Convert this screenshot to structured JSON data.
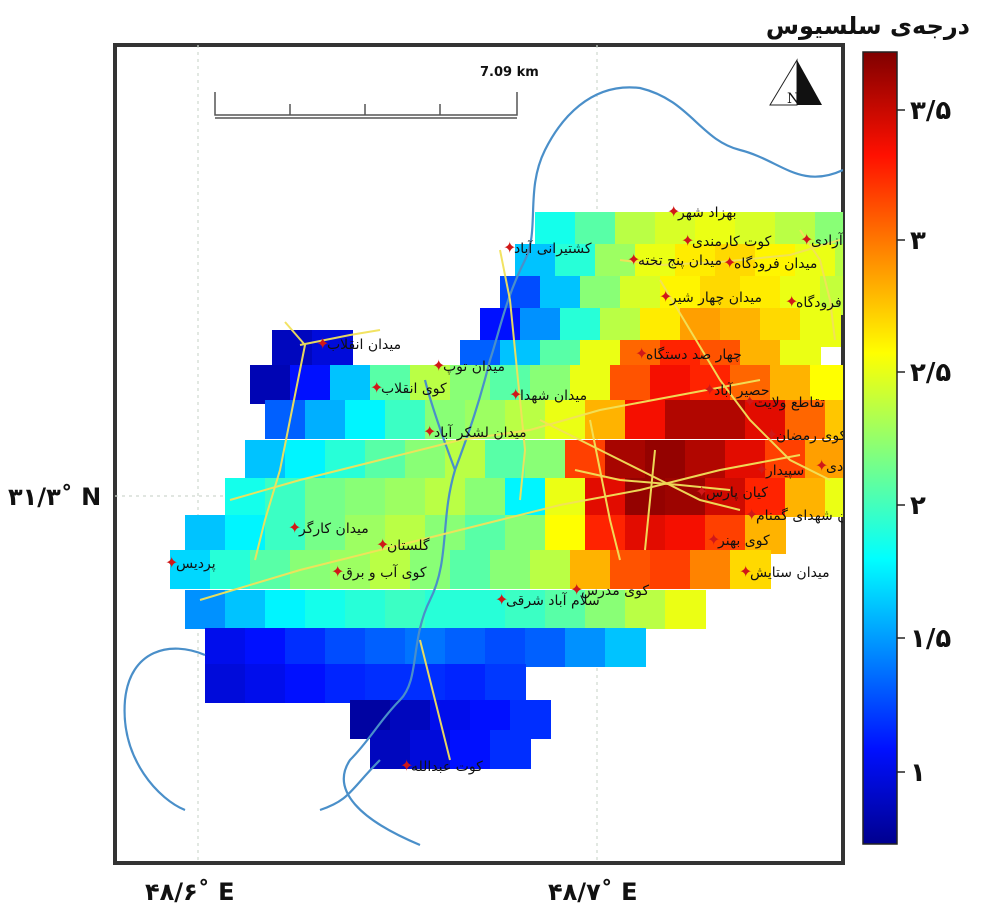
{
  "map": {
    "colorbar_title": "درجه‌ی سلسیوس",
    "colorbar_ticks": [
      "۳/۵",
      "۳",
      "۲/۵",
      "۲",
      "۱/۵",
      "۱"
    ],
    "x_axis_labels": [
      "۴۸/۶˚ E",
      "۴۸/۷˚ E"
    ],
    "y_axis_labels": [
      "۳۱/۳˚ N"
    ],
    "scale_bar_label": "7.09 km",
    "north_label": "N",
    "place_labels": [
      "بهزاد شهر",
      "کوی آزادی",
      "کوت کارمندی",
      "کشتیرانی آباد",
      "میدان فرودگاه",
      "میدان پنج تخته",
      "میدان چهار شیر",
      "فرودگاه",
      "میدان انقلاب",
      "میدان توپ",
      "چهار صد دستگاه",
      "کوی انقلاب",
      "میدان شهدا",
      "حصیر آباد",
      "تقاطع ولایت",
      "میدان لشکر آباد",
      "کوی رمضان",
      "آبادی",
      "سپیدار",
      "کیان پارس",
      "میدان شهدای گمنام",
      "میدان کارگر",
      "کوی بهنر",
      "گلستان",
      "پردیس",
      "کوی آب و برق",
      "میدان ستایش",
      "کوی مدرس",
      "سلام آباد شرقی",
      "کوت عبدالله"
    ],
    "colors": {
      "frame": "#333333",
      "river": "#4a8fc9",
      "roads": "#f2e25a",
      "marker": "#d01818"
    }
  }
}
